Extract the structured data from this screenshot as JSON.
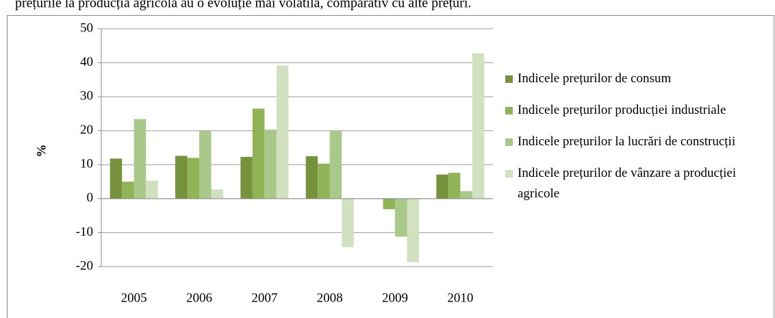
{
  "intro_text": "prețurile la producția agricolă au o evoluție mai volatilă, comparativ cu alte prețuri.",
  "chart_data": {
    "type": "bar",
    "y_label": "%",
    "categories": [
      "2005",
      "2006",
      "2007",
      "2008",
      "2009",
      "2010"
    ],
    "series": [
      {
        "name": "Indicele prețurilor de consum",
        "color": "#76923c",
        "values": [
          11.8,
          12.6,
          12.3,
          12.5,
          null,
          7.1
        ]
      },
      {
        "name": "Indicele prețurilor producției industriale",
        "color": "#8fb355",
        "values": [
          5.0,
          12.0,
          26.5,
          10.3,
          -3.1,
          7.6
        ]
      },
      {
        "name": "Indicele prețurilor la lucrări de construcții",
        "color": "#a9c98a",
        "values": [
          23.4,
          19.9,
          20.3,
          19.9,
          -11.2,
          2.2
        ]
      },
      {
        "name": "Indicele prețurilor de vânzare a producției agricole",
        "color": "#d1e1c0",
        "values": [
          5.3,
          2.7,
          39.2,
          -14.3,
          -18.7,
          42.8
        ]
      }
    ],
    "ylim": [
      -20,
      50
    ],
    "yticks": [
      -20,
      -10,
      0,
      10,
      20,
      30,
      40,
      50
    ],
    "grid": true,
    "legend": "right"
  }
}
